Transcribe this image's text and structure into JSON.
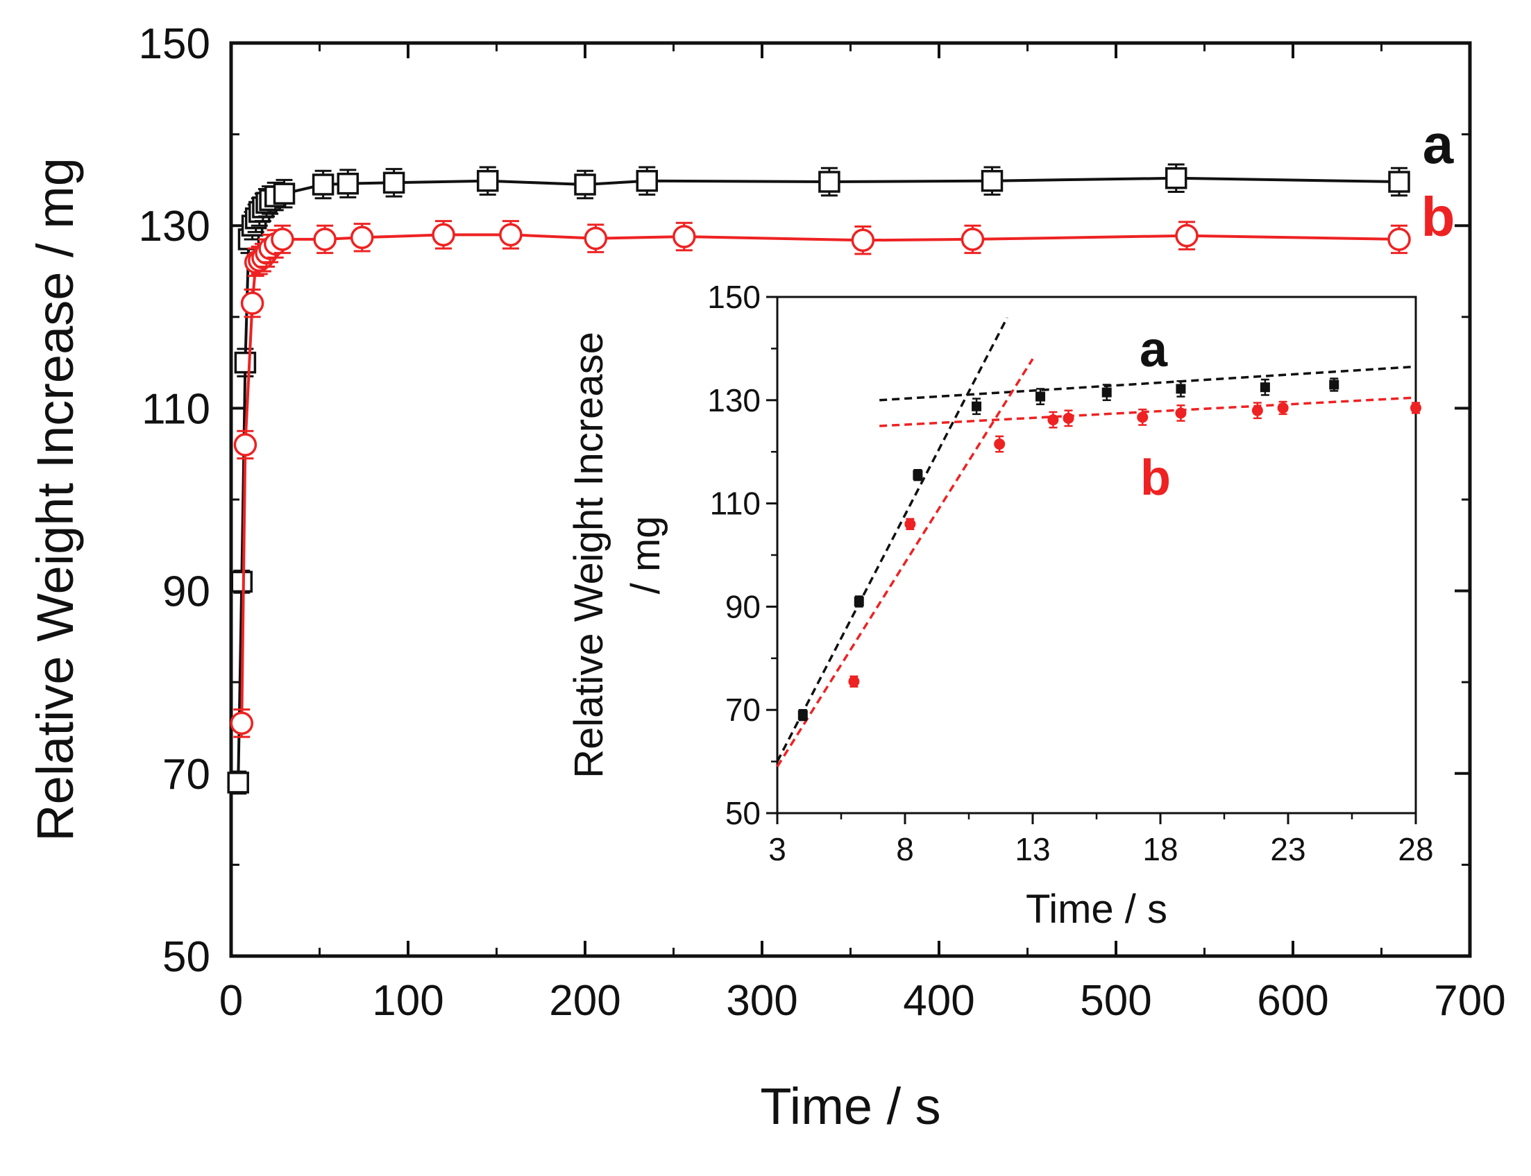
{
  "chart_data": [
    {
      "type": "line",
      "xlabel": "Time / s",
      "ylabel": "Relative Weight Increase / mg",
      "xlim": [
        0,
        700
      ],
      "ylim": [
        50,
        150
      ],
      "xticks": [
        0,
        100,
        200,
        300,
        400,
        500,
        600,
        700
      ],
      "yticks": [
        50,
        70,
        90,
        110,
        130,
        150
      ],
      "xtick_labels": [
        "0",
        "100",
        "200",
        "300",
        "400",
        "500",
        "600",
        "700"
      ],
      "ytick_labels": [
        "50",
        "70",
        "90",
        "110",
        "130",
        "150"
      ],
      "series": [
        {
          "name": "a",
          "color": "#111111",
          "marker": "open-square",
          "x": [
            4,
            6,
            8,
            10,
            12,
            14,
            16,
            18,
            20,
            22,
            25,
            30,
            52,
            66,
            92,
            145,
            200,
            235,
            338,
            430,
            534,
            660
          ],
          "y": [
            69,
            91,
            115,
            128.5,
            130,
            130.8,
            131.5,
            132,
            132.5,
            132.8,
            133.2,
            133.5,
            134.5,
            134.6,
            134.7,
            134.9,
            134.5,
            134.9,
            134.8,
            134.9,
            135.2,
            134.8
          ],
          "err": [
            1.2,
            1.2,
            1.5,
            1.5,
            1.5,
            1.5,
            1.5,
            1.5,
            1.5,
            1.5,
            1.5,
            1.5,
            1.5,
            1.5,
            1.5,
            1.5,
            1.5,
            1.5,
            1.5,
            1.5,
            1.5,
            1.5
          ]
        },
        {
          "name": "b",
          "color": "#ee2222",
          "marker": "open-circle",
          "x": [
            6,
            8,
            12,
            14,
            16,
            18,
            20,
            22,
            25,
            29,
            53,
            74,
            120,
            158,
            206,
            256,
            357,
            419,
            540,
            660
          ],
          "y": [
            75.5,
            106,
            121.5,
            126,
            126.2,
            126.5,
            127,
            127.5,
            128,
            128.5,
            128.5,
            128.7,
            129,
            129,
            128.6,
            128.8,
            128.4,
            128.5,
            128.9,
            128.5
          ],
          "err": [
            1.5,
            1.5,
            1.5,
            1.5,
            1.5,
            1.5,
            1.5,
            1.5,
            1.5,
            1.5,
            1.5,
            1.5,
            1.5,
            1.5,
            1.5,
            1.5,
            1.5,
            1.5,
            1.5,
            1.5
          ]
        }
      ]
    },
    {
      "type": "scatter",
      "role": "inset",
      "xlabel": "Time / s",
      "ylabel": "Relative Weight Increase / mg",
      "ylabel_lines": [
        "Relative Weight Increase",
        "/ mg"
      ],
      "xlim": [
        3,
        28
      ],
      "ylim": [
        50,
        150
      ],
      "xticks": [
        3,
        8,
        13,
        18,
        23,
        28
      ],
      "yticks": [
        50,
        70,
        90,
        110,
        130,
        150
      ],
      "xtick_labels": [
        "3",
        "8",
        "13",
        "18",
        "23",
        "28"
      ],
      "ytick_labels": [
        "50",
        "70",
        "90",
        "110",
        "130",
        "150"
      ],
      "series": [
        {
          "name": "a",
          "color": "#111111",
          "x": [
            4,
            6.2,
            8.5,
            10.8,
            13.3,
            15.9,
            18.8,
            22.1,
            24.8
          ],
          "y": [
            69,
            91,
            115.5,
            128.8,
            130.7,
            131.5,
            132.2,
            132.5,
            133
          ],
          "err": [
            1,
            1,
            1,
            1.5,
            1.5,
            1.5,
            1.5,
            1.5,
            1.2
          ]
        },
        {
          "name": "b",
          "color": "#ee2222",
          "x": [
            6,
            8.2,
            11.7,
            13.8,
            14.4,
            17.3,
            18.8,
            21.8,
            22.8,
            28
          ],
          "y": [
            75.5,
            106,
            121.5,
            126.2,
            126.5,
            126.7,
            127.5,
            128,
            128.5,
            128.5
          ],
          "err": [
            1,
            1,
            1.5,
            1.5,
            1.5,
            1.5,
            1.5,
            1.5,
            1.2,
            1
          ]
        }
      ],
      "fit_lines": [
        {
          "series": "a",
          "x": [
            3,
            12
          ],
          "y": [
            60,
            146
          ]
        },
        {
          "series": "a",
          "x": [
            7,
            28
          ],
          "y": [
            130,
            136.5
          ]
        },
        {
          "series": "b",
          "x": [
            3,
            13
          ],
          "y": [
            59,
            138
          ]
        },
        {
          "series": "b",
          "x": [
            7,
            28
          ],
          "y": [
            125,
            130.5
          ]
        }
      ]
    }
  ]
}
